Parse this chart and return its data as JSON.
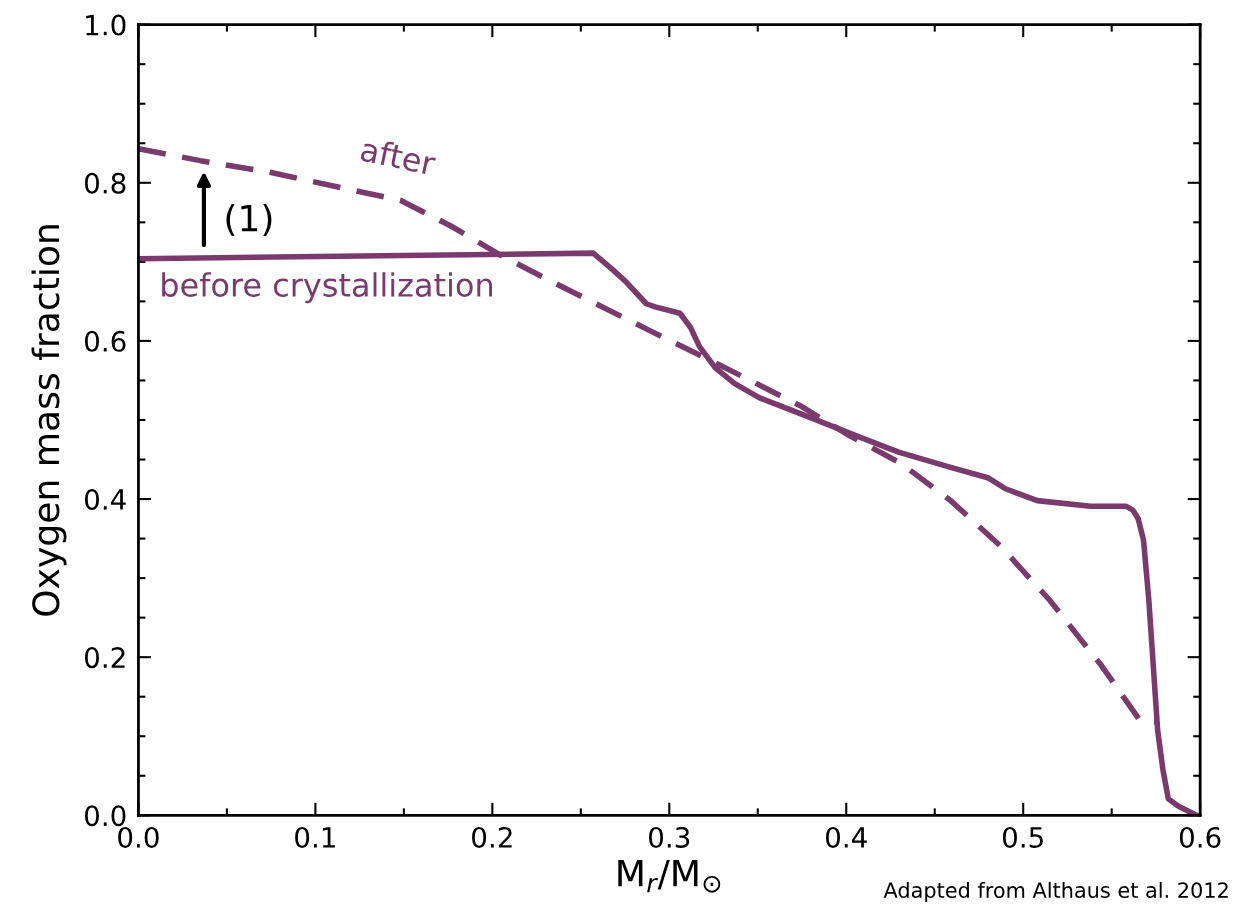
{
  "chart_data": {
    "type": "line",
    "xlabel": "M$_{r}$/M$_{⊙}$",
    "ylabel": "Oxygen mass fraction",
    "xlim": [
      0.0,
      0.6
    ],
    "ylim": [
      0.0,
      1.0
    ],
    "xticks": [
      {
        "value": 0,
        "label": "0.0"
      },
      0.1,
      0.2,
      0.3,
      0.4,
      0.5,
      0.6
    ],
    "yticks": [
      {
        "value": 0,
        "label": "0.0"
      },
      0.2,
      0.4,
      0.6,
      0.8,
      {
        "value": 1,
        "label": "1.0"
      }
    ],
    "grid": false,
    "legend": false,
    "series": [
      {
        "name": "before crystallization",
        "color": "#7b3a6e",
        "line_style": "solid",
        "x": [
          0.0,
          0.257,
          0.267,
          0.275,
          0.287,
          0.292,
          0.306,
          0.312,
          0.317,
          0.326,
          0.337,
          0.351,
          0.374,
          0.408,
          0.43,
          0.459,
          0.48,
          0.49,
          0.508,
          0.538,
          0.558,
          0.562,
          0.565,
          0.568,
          0.571,
          0.576,
          0.579,
          0.582,
          0.588,
          0.598
        ],
        "values": [
          0.704,
          0.711,
          0.692,
          0.676,
          0.647,
          0.643,
          0.635,
          0.617,
          0.593,
          0.566,
          0.546,
          0.528,
          0.508,
          0.478,
          0.459,
          0.44,
          0.427,
          0.413,
          0.398,
          0.391,
          0.391,
          0.386,
          0.375,
          0.348,
          0.272,
          0.107,
          0.057,
          0.021,
          0.011,
          0.0
        ]
      },
      {
        "name": "after",
        "color": "#7b3a6e",
        "line_style": "dashed",
        "x": [
          0.0,
          0.035,
          0.075,
          0.114,
          0.148,
          0.176,
          0.205,
          0.238,
          0.289,
          0.329,
          0.374,
          0.402,
          0.431,
          0.459,
          0.487,
          0.515,
          0.544,
          0.566,
          0.575
        ],
        "values": [
          0.843,
          0.828,
          0.813,
          0.794,
          0.778,
          0.746,
          0.708,
          0.67,
          0.613,
          0.569,
          0.518,
          0.48,
          0.445,
          0.398,
          0.341,
          0.272,
          0.19,
          0.12,
          0.118
        ]
      }
    ],
    "annotations": [
      {
        "text": "(1)",
        "x": 0.037,
        "y": 0.818
      },
      "Adapted from Althaus et al. 2012"
    ]
  }
}
